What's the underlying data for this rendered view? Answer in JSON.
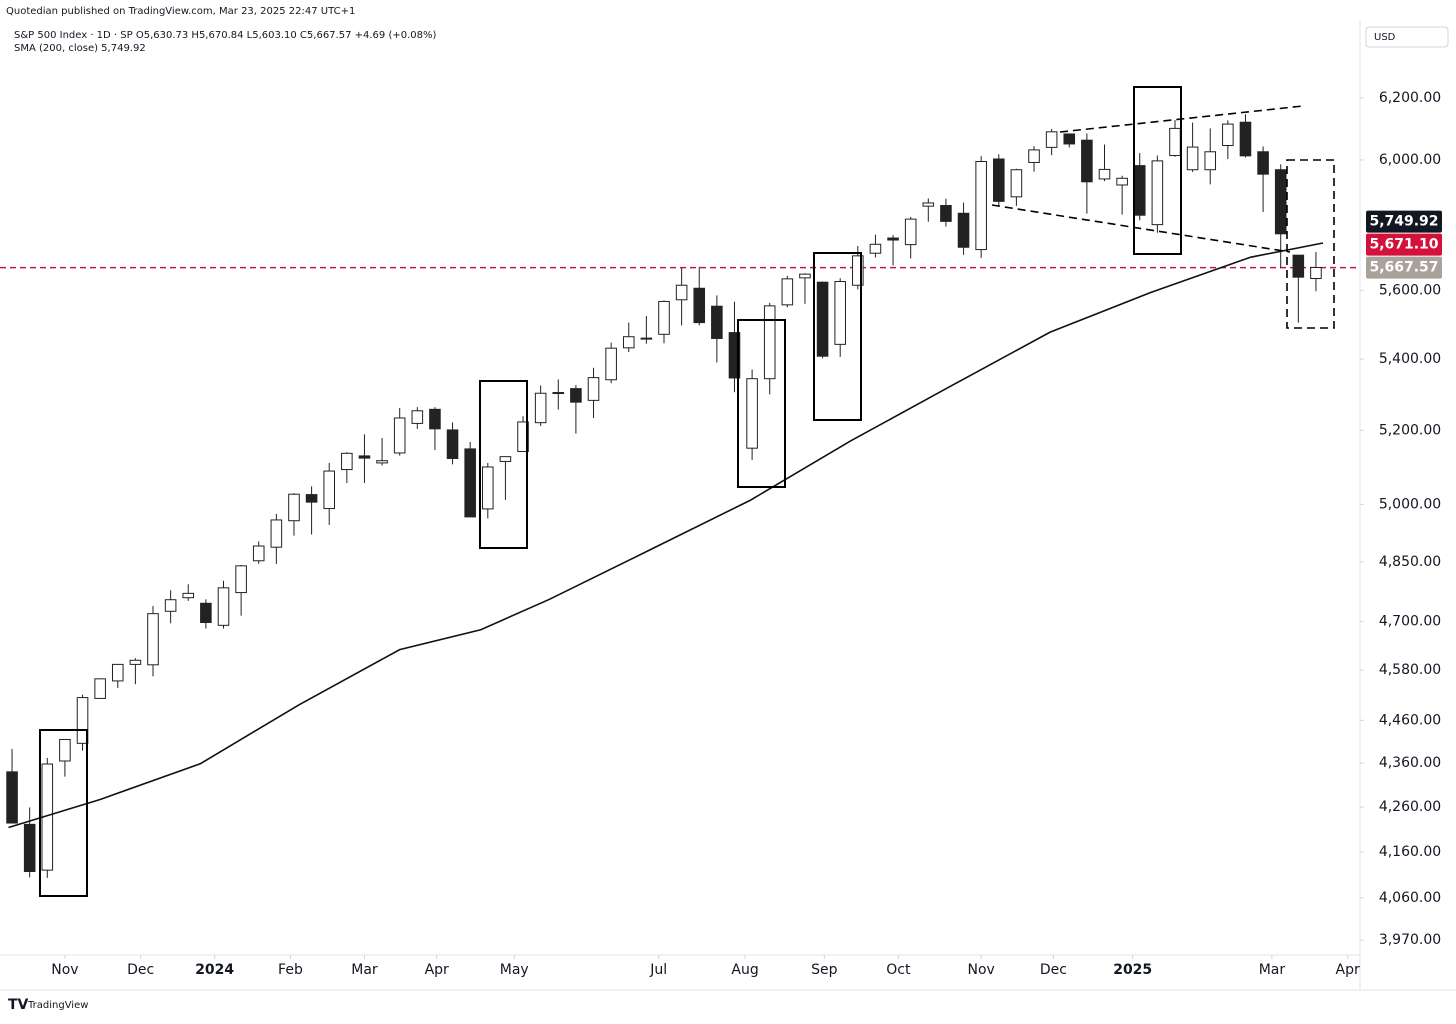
{
  "header": {
    "publisher": "Quotedian published on TradingView.com, Mar 23, 2025 22:47 UTC+1",
    "legend": "S&P 500 Index · 1D · SP  O5,630.73 H5,670.84 L5,603.10 C5,667.57 +4.69 (+0.08%)",
    "indicator": "SMA (200, close)  5,749.92",
    "currency": "USD"
  },
  "footer": {
    "brand": "TradingView"
  },
  "chart_data": {
    "type": "candlestick",
    "log_scale": true,
    "up_color": "#ffffff",
    "down_color": "#222222",
    "edge_color": "#222222",
    "candles": [
      [
        4340,
        4393,
        4223,
        4224
      ],
      [
        4221,
        4259,
        4104,
        4117
      ],
      [
        4120,
        4372,
        4103,
        4358
      ],
      [
        4365,
        4415,
        4329,
        4415
      ],
      [
        4406,
        4521,
        4389,
        4514
      ],
      [
        4512,
        4560,
        4511,
        4559
      ],
      [
        4554,
        4595,
        4537,
        4594
      ],
      [
        4594,
        4609,
        4546,
        4604
      ],
      [
        4593,
        4738,
        4565,
        4719
      ],
      [
        4725,
        4778,
        4695,
        4754
      ],
      [
        4759,
        4793,
        4751,
        4770
      ],
      [
        4745,
        4755,
        4682,
        4697
      ],
      [
        4690,
        4802,
        4682,
        4784
      ],
      [
        4772,
        4842,
        4714,
        4840
      ],
      [
        4853,
        4903,
        4845,
        4891
      ],
      [
        4888,
        4975,
        4845,
        4959
      ],
      [
        4957,
        5030,
        4918,
        5027
      ],
      [
        5026,
        5048,
        4921,
        5006
      ],
      [
        4989,
        5111,
        4946,
        5089
      ],
      [
        5093,
        5140,
        5057,
        5137
      ],
      [
        5130,
        5189,
        5057,
        5124
      ],
      [
        5111,
        5179,
        5104,
        5117
      ],
      [
        5138,
        5262,
        5131,
        5234
      ],
      [
        5219,
        5264,
        5204,
        5254
      ],
      [
        5258,
        5264,
        5146,
        5204
      ],
      [
        5201,
        5222,
        5107,
        5123
      ],
      [
        5149,
        5168,
        4968,
        4967
      ],
      [
        4988,
        5111,
        4963,
        5100
      ],
      [
        5115,
        5129,
        5012,
        5128
      ],
      [
        5142,
        5239,
        5142,
        5223
      ],
      [
        5221,
        5325,
        5212,
        5303
      ],
      [
        5305,
        5342,
        5257,
        5304
      ],
      [
        5316,
        5326,
        5191,
        5278
      ],
      [
        5283,
        5375,
        5234,
        5347
      ],
      [
        5341,
        5447,
        5331,
        5431
      ],
      [
        5432,
        5505,
        5420,
        5464
      ],
      [
        5460,
        5524,
        5444,
        5460
      ],
      [
        5471,
        5570,
        5445,
        5567
      ],
      [
        5572,
        5666,
        5497,
        5615
      ],
      [
        5606,
        5670,
        5497,
        5505
      ],
      [
        5553,
        5585,
        5390,
        5459
      ],
      [
        5476,
        5566,
        5306,
        5346
      ],
      [
        5151,
        5370,
        5119,
        5344
      ],
      [
        5344,
        5563,
        5300,
        5554
      ],
      [
        5557,
        5643,
        5550,
        5634
      ],
      [
        5637,
        5651,
        5560,
        5648
      ],
      [
        5624,
        5626,
        5402,
        5408
      ],
      [
        5442,
        5636,
        5406,
        5626
      ],
      [
        5615,
        5733,
        5603,
        5703
      ],
      [
        5711,
        5767,
        5698,
        5738
      ],
      [
        5757,
        5766,
        5674,
        5751
      ],
      [
        5737,
        5822,
        5695,
        5815
      ],
      [
        5855,
        5879,
        5807,
        5865
      ],
      [
        5857,
        5878,
        5792,
        5808
      ],
      [
        5833,
        5866,
        5706,
        5729
      ],
      [
        5722,
        6012,
        5697,
        5995
      ],
      [
        6003,
        6018,
        5853,
        5870
      ],
      [
        5884,
        5972,
        5856,
        5969
      ],
      [
        5992,
        6044,
        5963,
        6032
      ],
      [
        6040,
        6099,
        6015,
        6090
      ],
      [
        6083,
        6085,
        6040,
        6051
      ],
      [
        6063,
        6085,
        5832,
        5931
      ],
      [
        5940,
        6049,
        5933,
        5970
      ],
      [
        5921,
        5950,
        5829,
        5942
      ],
      [
        5982,
        6022,
        5811,
        5827
      ],
      [
        5798,
        6014,
        5773,
        5997
      ],
      [
        6014,
        6128,
        6010,
        6101
      ],
      [
        5969,
        6120,
        5962,
        6041
      ],
      [
        5969,
        6101,
        5923,
        6026
      ],
      [
        6046,
        6127,
        6003,
        6115
      ],
      [
        6121,
        6147,
        6008,
        6013
      ],
      [
        6026,
        6043,
        5837,
        5955
      ],
      [
        5969,
        5986,
        5666,
        5770
      ],
      [
        5705,
        5705,
        5505,
        5639
      ],
      [
        5635,
        5715,
        5597,
        5668
      ]
    ],
    "sma": {
      "color": "#111111",
      "x": [
        -0.2,
        5.0,
        10.7,
        16.3,
        22.0,
        26.6,
        30.5,
        36.2,
        41.9,
        47.6,
        53.2,
        58.9,
        64.6,
        70.3,
        74.4
      ],
      "values": [
        4214,
        4277,
        4359,
        4497,
        4630,
        4679,
        4755,
        4881,
        5011,
        5171,
        5321,
        5477,
        5593,
        5699,
        5742
      ]
    },
    "level_line": {
      "value": 5667.57,
      "color": "#c2185b"
    },
    "price_labels": [
      {
        "value": 5667.57,
        "label": "5,667.57",
        "color": "#a8a29a"
      },
      {
        "value": 5671.1,
        "label": "5,671.10",
        "color": "#d3113a"
      },
      {
        "value": 5749.92,
        "label": "5,749.92",
        "color": "#131722"
      }
    ],
    "xlim": [
      -0.4,
      76.5
    ],
    "ylim": [
      3939,
      6434
    ],
    "yticks": [
      {
        "value": 6200,
        "label": "6,200.00"
      },
      {
        "value": 6000,
        "label": "6,000.00"
      },
      {
        "value": 5600,
        "label": "5,600.00"
      },
      {
        "value": 5400,
        "label": "5,400.00"
      },
      {
        "value": 5200,
        "label": "5,200.00"
      },
      {
        "value": 5000,
        "label": "5,000.00"
      },
      {
        "value": 4850,
        "label": "4,850.00"
      },
      {
        "value": 4700,
        "label": "4,700.00"
      },
      {
        "value": 4580,
        "label": "4,580.00"
      },
      {
        "value": 4460,
        "label": "4,460.00"
      },
      {
        "value": 4360,
        "label": "4,360.00"
      },
      {
        "value": 4260,
        "label": "4,260.00"
      },
      {
        "value": 4160,
        "label": "4,160.00"
      },
      {
        "value": 4060,
        "label": "4,060.00"
      },
      {
        "value": 3970,
        "label": "3,970.00"
      }
    ],
    "xticks": [
      {
        "value": 3.0,
        "label": "Nov"
      },
      {
        "value": 7.3,
        "label": "Dec"
      },
      {
        "value": 11.5,
        "label": "2024"
      },
      {
        "value": 15.8,
        "label": "Feb"
      },
      {
        "value": 20.0,
        "label": "Mar"
      },
      {
        "value": 24.1,
        "label": "Apr"
      },
      {
        "value": 28.5,
        "label": "May"
      },
      {
        "value": 36.7,
        "label": "Jul"
      },
      {
        "value": 41.6,
        "label": "Aug"
      },
      {
        "value": 46.1,
        "label": "Sep"
      },
      {
        "value": 50.3,
        "label": "Oct"
      },
      {
        "value": 55.0,
        "label": "Nov"
      },
      {
        "value": 59.1,
        "label": "Dec"
      },
      {
        "value": 63.6,
        "label": "2025"
      },
      {
        "value": 71.5,
        "label": "Mar"
      },
      {
        "value": 75.8,
        "label": "Apr"
      }
    ]
  }
}
